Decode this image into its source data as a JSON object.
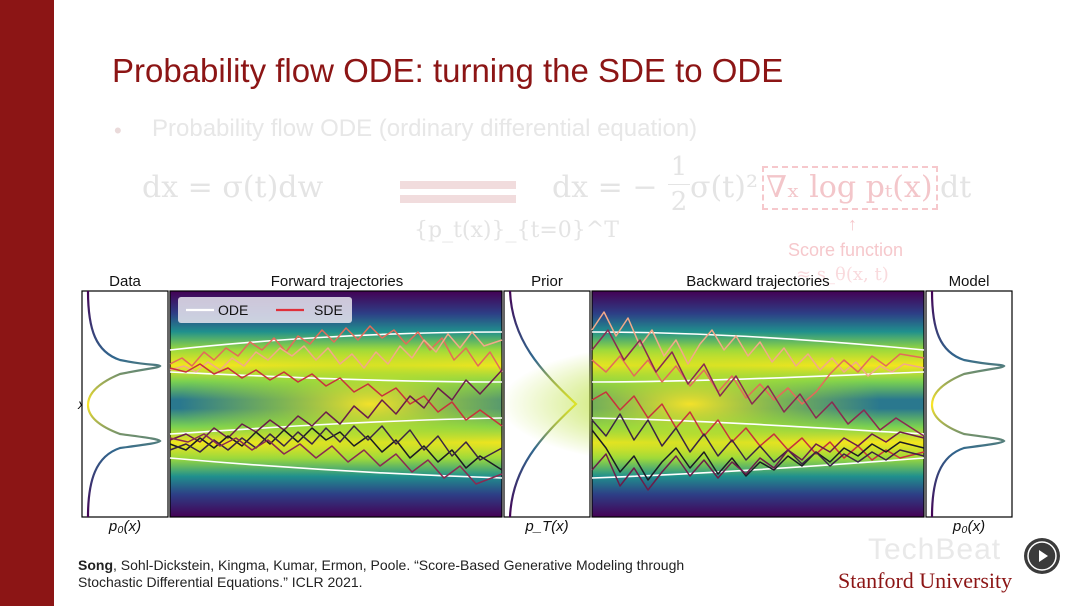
{
  "slide": {
    "title": "Probability flow ODE: turning the SDE to ODE",
    "bullet": "Probability flow ODE (ordinary differential equation)",
    "equation_left": "dx = σ(t)dw",
    "equation_arrow_sub": "{p_t(x)}_{t=0}^T",
    "equation_right_prefix": "dx = −",
    "equation_frac_num": "1",
    "equation_frac_den": "2",
    "equation_right_mid": "σ(t)²",
    "equation_score": "∇ₓ log pₜ(x)",
    "equation_right_suffix": "dt",
    "score_label": "Score function",
    "score_sub": "≈ s_θ(x, t)"
  },
  "figure": {
    "panels": {
      "data": "Data",
      "forward": "Forward trajectories",
      "prior": "Prior",
      "backward": "Backward trajectories",
      "model": "Model"
    },
    "y_label": "x",
    "foot_labels": {
      "data": "p₀(x)",
      "prior": "p_T(x)",
      "model": "p₀(x)"
    },
    "legend": {
      "ode": "ODE",
      "sde": "SDE"
    },
    "colors": {
      "ode": "#ffffff",
      "sde": "#e0303a"
    }
  },
  "citation": {
    "first_author": "Song",
    "rest": ", Sohl-Dickstein, Kingma, Kumar, Ermon, Poole. “Score-Based Generative Modeling through Stochastic Differential Equations.” ICLR 2021."
  },
  "footer": {
    "watermark": "TechBeat",
    "university": "Stanford University"
  },
  "colors": {
    "accent": "#8c1515"
  }
}
